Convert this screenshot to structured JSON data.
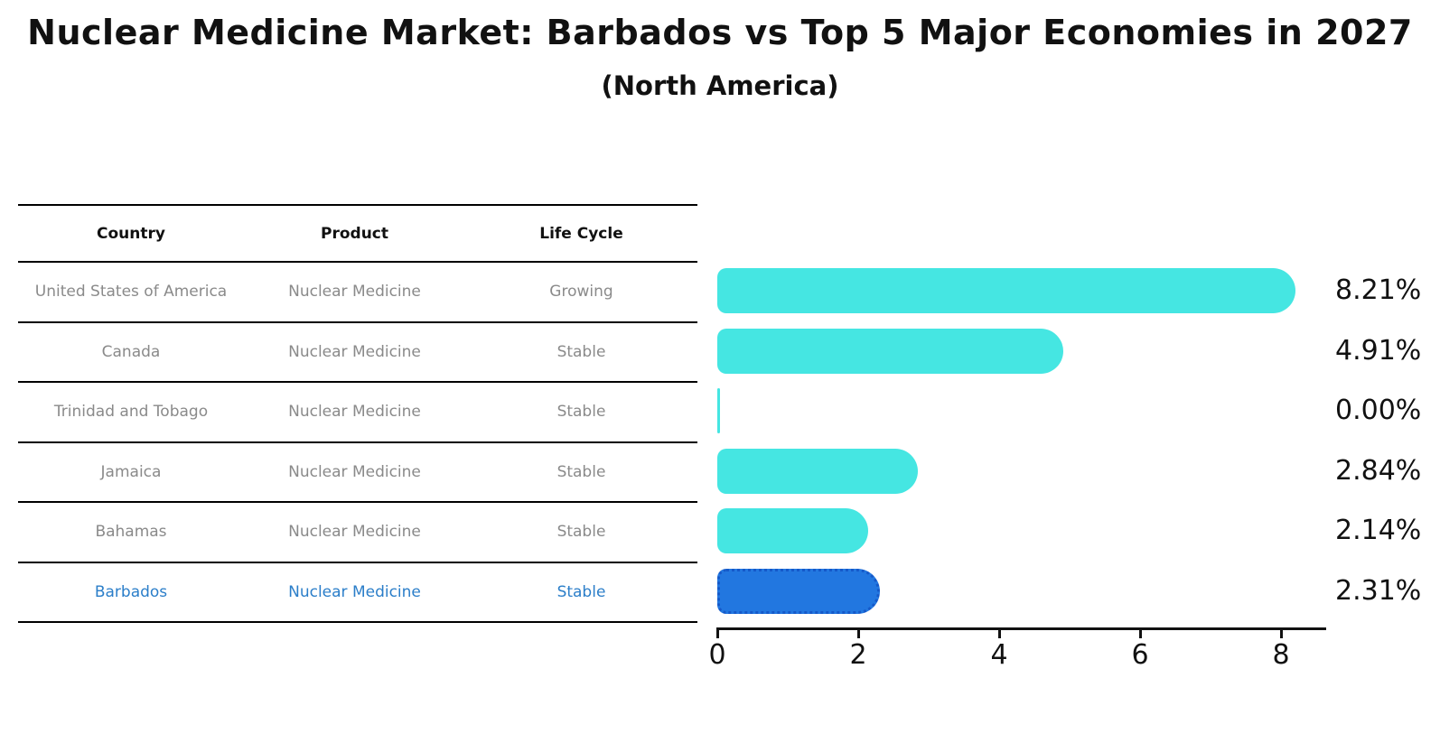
{
  "chart": {
    "title": "Nuclear Medicine Market: Barbados vs Top 5 Major Economies in 2027",
    "subtitle": "(North America)"
  },
  "table": {
    "headers": [
      "Country",
      "Product",
      "Life Cycle"
    ],
    "rows": [
      {
        "country": "United States of America",
        "product": "Nuclear Medicine",
        "life_cycle": "Growing",
        "highlighted": false
      },
      {
        "country": "Canada",
        "product": "Nuclear Medicine",
        "life_cycle": "Stable",
        "highlighted": false
      },
      {
        "country": "Trinidad and Tobago",
        "product": "Nuclear Medicine",
        "life_cycle": "Stable",
        "highlighted": false
      },
      {
        "country": "Jamaica",
        "product": "Nuclear Medicine",
        "life_cycle": "Stable",
        "highlighted": false
      },
      {
        "country": "Bahamas",
        "product": "Nuclear Medicine",
        "life_cycle": "Stable",
        "highlighted": false
      },
      {
        "country": "Barbados",
        "product": "Nuclear Medicine",
        "life_cycle": "Stable",
        "highlighted": true
      }
    ]
  },
  "chart_data": {
    "type": "bar",
    "orientation": "horizontal",
    "title": "Nuclear Medicine Market: Barbados vs Top 5 Major Economies in 2027",
    "subtitle": "(North America)",
    "categories": [
      "United States of America",
      "Canada",
      "Trinidad and Tobago",
      "Jamaica",
      "Bahamas",
      "Barbados"
    ],
    "values": [
      8.21,
      4.91,
      0.0,
      2.84,
      2.14,
      2.31
    ],
    "value_labels": [
      "8.21%",
      "4.91%",
      "0.00%",
      "2.84%",
      "2.14%",
      "2.31%"
    ],
    "xlabel": "",
    "ylabel": "",
    "x_ticks": [
      0,
      2,
      4,
      6,
      8
    ],
    "xlim": [
      0,
      8.64
    ],
    "grid": false,
    "legend": false,
    "bar_color": "#45e6e2",
    "highlight_color": "#2277e0",
    "highlight_border_color": "#1559c9",
    "highlight_index": 5,
    "highlight_text_color": "#2b7ec9"
  }
}
